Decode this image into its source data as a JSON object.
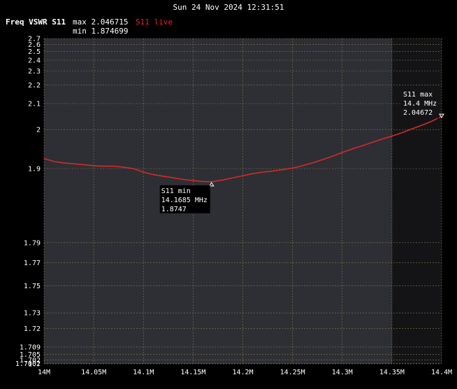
{
  "header": {
    "datetime": "Sun 24 Nov 2024 12:31:51",
    "trace_label": "Freq VSWR S11",
    "max_readout": "max 2.046715",
    "min_readout": "min 1.874699",
    "live_label": "S11 live"
  },
  "colors": {
    "trace": "#d42a2a",
    "plot_bg": "#2e2f34",
    "dark_bg": "#141416",
    "grid": "#7c7a55",
    "live": "#e52222"
  },
  "chart_data": {
    "type": "line",
    "x_ticks": [
      14.0,
      14.05,
      14.1,
      14.15,
      14.2,
      14.25,
      14.3,
      14.35,
      14.4
    ],
    "x_tick_labels": [
      "14M",
      "14.05M",
      "14.1M",
      "14.15M",
      "14.2M",
      "14.25M",
      "14.3M",
      "14.35M",
      "14.4M"
    ],
    "y_ticks": [
      1.7,
      1.7002,
      1.702,
      1.705,
      1.709,
      1.72,
      1.73,
      1.75,
      1.77,
      1.79,
      1.9,
      2,
      2.1,
      2.2,
      2.3,
      2.4,
      2.5,
      2.6,
      2.7
    ],
    "y_tick_labels": [
      "1.7",
      "1.7002",
      "1.702",
      "1.705",
      "1.709",
      "1.72",
      "1.73",
      "1.75",
      "1.77",
      "1.79",
      "1.9",
      "2",
      "2.1",
      "2.2",
      "2.3",
      "2.4",
      "2.5",
      "2.6",
      "2.7"
    ],
    "xlim": [
      14.0,
      14.4
    ],
    "ylim": [
      1.7,
      2.7
    ],
    "y_scale": "reciprocal (return-loss spaced)",
    "grid": true,
    "shaded_span_x": [
      14.0,
      14.35
    ],
    "series": [
      {
        "x": [
          14.0,
          14.01,
          14.02,
          14.03,
          14.04,
          14.05,
          14.06,
          14.07,
          14.08,
          14.09,
          14.1,
          14.11,
          14.12,
          14.13,
          14.14,
          14.15,
          14.16,
          14.17,
          14.18,
          14.19,
          14.2,
          14.21,
          14.22,
          14.23,
          14.24,
          14.25,
          14.26,
          14.27,
          14.28,
          14.29,
          14.3,
          14.31,
          14.32,
          14.33,
          14.34,
          14.35,
          14.36,
          14.37,
          14.38,
          14.39,
          14.4
        ],
        "y": [
          1.922,
          1.915,
          1.912,
          1.91,
          1.908,
          1.906,
          1.905,
          1.905,
          1.903,
          1.9,
          1.893,
          1.888,
          1.885,
          1.882,
          1.879,
          1.877,
          1.875,
          1.875,
          1.878,
          1.882,
          1.886,
          1.89,
          1.893,
          1.895,
          1.898,
          1.901,
          1.906,
          1.912,
          1.919,
          1.927,
          1.936,
          1.945,
          1.953,
          1.962,
          1.971,
          1.98,
          1.99,
          2.002,
          2.014,
          2.028,
          2.047
        ]
      }
    ],
    "markers": [
      {
        "id": "min",
        "x": 14.1685,
        "y": 1.8747,
        "title": "S11 min",
        "freq": "14.1685 MHz",
        "value": "1.8747"
      },
      {
        "id": "max",
        "x": 14.4,
        "y": 2.04672,
        "title": "S11 max",
        "freq": "14.4 MHz",
        "value": "2.04672"
      }
    ]
  }
}
